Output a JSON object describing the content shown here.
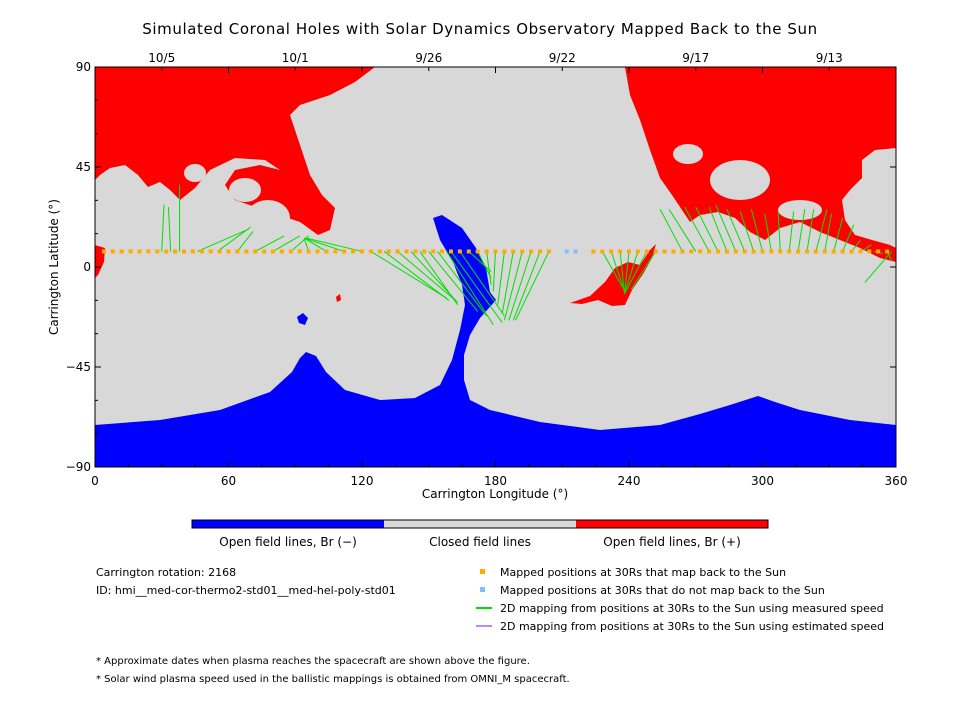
{
  "chart_data": {
    "type": "map",
    "title": "Simulated Coronal Holes with Solar Dynamics Observatory Mapped Back to the Sun",
    "xlabel": "Carrington Longitude (°)",
    "ylabel": "Carrington Latitude (°)",
    "xlim": [
      0,
      360
    ],
    "ylim": [
      -90,
      90
    ],
    "xticks": [
      "0",
      "60",
      "120",
      "180",
      "240",
      "300",
      "360"
    ],
    "yticks": [
      "90",
      "45",
      "0",
      "-45",
      "-90"
    ],
    "top_axis_dates": [
      {
        "label": "10/5",
        "lon": 30
      },
      {
        "label": "10/1",
        "lon": 90
      },
      {
        "label": "9/26",
        "lon": 150
      },
      {
        "label": "9/22",
        "lon": 210
      },
      {
        "label": "9/17",
        "lon": 270
      },
      {
        "label": "9/13",
        "lon": 330
      }
    ],
    "colors": {
      "open_negative": "#0000ff",
      "closed": "#d8d8d8",
      "open_positive": "#ff0000",
      "mapped_back": "#ffaa00",
      "not_mapped": "#7fbfff",
      "measured_speed_line": "#00e000",
      "estimated_speed_line": "#bb88ff"
    },
    "mapped_point_lat": 7,
    "mapped_positions_lon": [
      4,
      8,
      12,
      16,
      20,
      24,
      28,
      32,
      36,
      40,
      44,
      48,
      52,
      56,
      60,
      64,
      68,
      72,
      76,
      80,
      84,
      88,
      92,
      96,
      100,
      104,
      108,
      112,
      116,
      120,
      124,
      128,
      132,
      136,
      140,
      144,
      148,
      152,
      156,
      160,
      164,
      168,
      172,
      176,
      180,
      184,
      188,
      192,
      196,
      200,
      204,
      224,
      228,
      232,
      236,
      240,
      244,
      248,
      252,
      256,
      260,
      264,
      268,
      272,
      276,
      280,
      284,
      288,
      292,
      296,
      300,
      304,
      308,
      312,
      316,
      320,
      324,
      328,
      332,
      336,
      340,
      344,
      348,
      352,
      356
    ],
    "unmapped_positions_lon": [
      212,
      216
    ],
    "mapping_lines": [
      {
        "from": [
          30,
          7
        ],
        "to": [
          31,
          28
        ]
      },
      {
        "from": [
          34,
          7
        ],
        "to": [
          33,
          27
        ]
      },
      {
        "from": [
          38,
          7
        ],
        "to": [
          38,
          37
        ]
      },
      {
        "from": [
          46,
          7
        ],
        "to": [
          69,
          17
        ]
      },
      {
        "from": [
          55,
          7
        ],
        "to": [
          70,
          18
        ]
      },
      {
        "from": [
          64,
          7
        ],
        "to": [
          71,
          16
        ]
      },
      {
        "from": [
          72,
          7
        ],
        "to": [
          85,
          14
        ]
      },
      {
        "from": [
          80,
          7
        ],
        "to": [
          92,
          14
        ]
      },
      {
        "from": [
          88,
          7
        ],
        "to": [
          96,
          14
        ]
      },
      {
        "from": [
          96,
          7
        ],
        "to": [
          94,
          13
        ]
      },
      {
        "from": [
          104,
          7
        ],
        "to": [
          94,
          13
        ]
      },
      {
        "from": [
          112,
          7
        ],
        "to": [
          94,
          13
        ]
      },
      {
        "from": [
          120,
          7
        ],
        "to": [
          95,
          13
        ]
      },
      {
        "from": [
          124,
          7
        ],
        "to": [
          158,
          -14
        ]
      },
      {
        "from": [
          130,
          7
        ],
        "to": [
          159,
          -15
        ]
      },
      {
        "from": [
          136,
          7
        ],
        "to": [
          162,
          -15
        ]
      },
      {
        "from": [
          142,
          7
        ],
        "to": [
          163,
          -16
        ]
      },
      {
        "from": [
          146,
          7
        ],
        "to": [
          163,
          -17
        ]
      },
      {
        "from": [
          150,
          7
        ],
        "to": [
          172,
          -20
        ]
      },
      {
        "from": [
          154,
          7
        ],
        "to": [
          176,
          -22
        ]
      },
      {
        "from": [
          158,
          7
        ],
        "to": [
          179,
          -26
        ]
      },
      {
        "from": [
          160,
          7
        ],
        "to": [
          183,
          -25
        ]
      },
      {
        "from": [
          164,
          7
        ],
        "to": [
          184,
          -22
        ]
      },
      {
        "from": [
          168,
          7
        ],
        "to": [
          178,
          -2
        ]
      },
      {
        "from": [
          172,
          7
        ],
        "to": [
          178,
          -5
        ]
      },
      {
        "from": [
          176,
          7
        ],
        "to": [
          178,
          -8
        ]
      },
      {
        "from": [
          180,
          7
        ],
        "to": [
          179,
          -11
        ]
      },
      {
        "from": [
          184,
          7
        ],
        "to": [
          181,
          -17
        ]
      },
      {
        "from": [
          188,
          7
        ],
        "to": [
          183,
          -21
        ]
      },
      {
        "from": [
          192,
          7
        ],
        "to": [
          184,
          -24
        ]
      },
      {
        "from": [
          196,
          7
        ],
        "to": [
          186,
          -24
        ]
      },
      {
        "from": [
          200,
          7
        ],
        "to": [
          188,
          -24
        ]
      },
      {
        "from": [
          204,
          7
        ],
        "to": [
          189,
          -24
        ]
      },
      {
        "from": [
          228,
          7
        ],
        "to": [
          237,
          -9
        ]
      },
      {
        "from": [
          232,
          7
        ],
        "to": [
          238,
          -11
        ]
      },
      {
        "from": [
          236,
          7
        ],
        "to": [
          238,
          -12
        ]
      },
      {
        "from": [
          240,
          7
        ],
        "to": [
          238,
          -12
        ]
      },
      {
        "from": [
          244,
          7
        ],
        "to": [
          238,
          -12
        ]
      },
      {
        "from": [
          248,
          7
        ],
        "to": [
          238,
          -12
        ]
      },
      {
        "from": [
          252,
          7
        ],
        "to": [
          241,
          -10
        ]
      },
      {
        "from": [
          264,
          7
        ],
        "to": [
          254,
          26
        ]
      },
      {
        "from": [
          270,
          7
        ],
        "to": [
          258,
          26
        ]
      },
      {
        "from": [
          276,
          7
        ],
        "to": [
          265,
          27
        ]
      },
      {
        "from": [
          280,
          7
        ],
        "to": [
          270,
          27
        ]
      },
      {
        "from": [
          284,
          7
        ],
        "to": [
          276,
          27
        ]
      },
      {
        "from": [
          288,
          7
        ],
        "to": [
          279,
          28
        ]
      },
      {
        "from": [
          292,
          7
        ],
        "to": [
          284,
          26
        ]
      },
      {
        "from": [
          296,
          7
        ],
        "to": [
          290,
          25
        ]
      },
      {
        "from": [
          300,
          7
        ],
        "to": [
          295,
          26
        ]
      },
      {
        "from": [
          304,
          7
        ],
        "to": [
          301,
          24
        ]
      },
      {
        "from": [
          308,
          7
        ],
        "to": [
          307,
          25
        ]
      },
      {
        "from": [
          312,
          7
        ],
        "to": [
          314,
          25
        ]
      },
      {
        "from": [
          316,
          7
        ],
        "to": [
          319,
          26
        ]
      },
      {
        "from": [
          320,
          7
        ],
        "to": [
          323,
          26
        ]
      },
      {
        "from": [
          324,
          7
        ],
        "to": [
          329,
          26
        ]
      },
      {
        "from": [
          328,
          7
        ],
        "to": [
          331,
          24
        ]
      },
      {
        "from": [
          332,
          7
        ],
        "to": [
          336,
          22
        ]
      },
      {
        "from": [
          336,
          7
        ],
        "to": [
          341,
          19
        ]
      },
      {
        "from": [
          340,
          7
        ],
        "to": [
          344,
          12
        ]
      },
      {
        "from": [
          344,
          7
        ],
        "to": [
          349,
          10
        ]
      },
      {
        "from": [
          350,
          7
        ],
        "to": [
          354,
          6
        ]
      },
      {
        "from": [
          356,
          7
        ],
        "to": [
          358,
          3
        ]
      },
      {
        "from": [
          358,
          7
        ],
        "to": [
          346,
          -7
        ]
      }
    ],
    "colorbar": {
      "labels": [
        "Open field lines, Br (−)",
        "Closed field lines",
        "Open field lines, Br (+)"
      ]
    }
  },
  "info": {
    "rotation": "Carrington rotation: 2168",
    "model_id": "ID: hmi__med-cor-thermo2-std01__med-hel-poly-std01"
  },
  "legend": {
    "mapped": "Mapped positions at 30Rs that map back to the Sun",
    "not_mapped": "Mapped positions at 30Rs that do not map back to the Sun",
    "measured": "2D mapping from positions at 30Rs to the Sun using measured speed",
    "estimated": "2D mapping from positions at 30Rs to the Sun using estimated speed"
  },
  "notes": [
    "* Approximate dates when plasma reaches the spacecraft are shown above the figure.",
    "* Solar wind plasma speed used in the ballistic mappings is obtained from OMNI_M spacecraft."
  ]
}
